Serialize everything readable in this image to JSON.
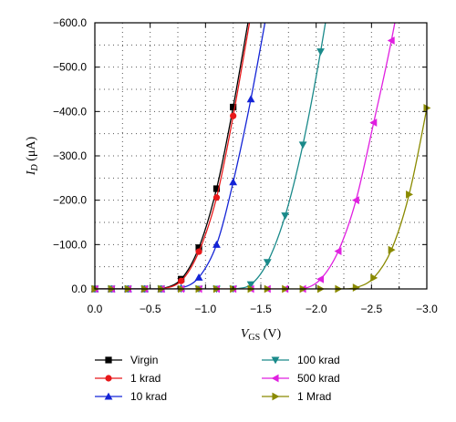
{
  "chart_data": {
    "type": "line",
    "xlabel": "V_GS (V)",
    "ylabel": "I_D (μA)",
    "xlim": [
      0.0,
      -3.0
    ],
    "ylim": [
      0.0,
      -600.0
    ],
    "x_ticks": [
      "0.0",
      "-0.5",
      "-1.0",
      "-1.5",
      "-2.0",
      "-2.5",
      "-3.0"
    ],
    "y_ticks": [
      "0.0",
      "-100.0",
      "-200.0",
      "-300.0",
      "-400.0",
      "-500.0",
      "-600.0"
    ],
    "grid": true,
    "legend_placement": "bottom",
    "series": [
      {
        "name": "Virgin",
        "color": "#000000",
        "marker": "square",
        "x": [
          0.0,
          -0.15,
          -0.3,
          -0.45,
          -0.6,
          -0.78,
          -0.94,
          -1.1,
          -1.25
        ],
        "y": [
          0,
          0,
          0,
          0,
          0,
          -22,
          -93,
          -226,
          -410
        ]
      },
      {
        "name": "1 krad",
        "color": "#e8181a",
        "marker": "circle",
        "x": [
          0.0,
          -0.15,
          -0.3,
          -0.45,
          -0.6,
          -0.78,
          -0.94,
          -1.1,
          -1.25
        ],
        "y": [
          0,
          0,
          0,
          0,
          0,
          -18,
          -84,
          -206,
          -390
        ]
      },
      {
        "name": "10 krad",
        "color": "#1424d6",
        "marker": "triangle-up",
        "x": [
          0.0,
          -0.15,
          -0.3,
          -0.45,
          -0.6,
          -0.78,
          -0.94,
          -1.1,
          -1.25,
          -1.41
        ],
        "y": [
          0,
          0,
          0,
          0,
          0,
          -2,
          -26,
          -100,
          -241,
          -428
        ]
      },
      {
        "name": "100 krad",
        "color": "#1a8a8a",
        "marker": "triangle-down",
        "x": [
          0.0,
          -0.15,
          -0.3,
          -0.45,
          -0.6,
          -0.78,
          -0.94,
          -1.1,
          -1.25,
          -1.41,
          -1.56,
          -1.72,
          -1.88,
          -2.04
        ],
        "y": [
          0,
          0,
          0,
          0,
          0,
          0,
          0,
          0,
          0,
          -10,
          -60,
          -165,
          -325,
          -535
        ]
      },
      {
        "name": "500 krad",
        "color": "#e020e0",
        "marker": "triangle-left",
        "x": [
          0.0,
          -0.15,
          -0.3,
          -0.45,
          -0.6,
          -0.78,
          -0.94,
          -1.1,
          -1.25,
          -1.41,
          -1.56,
          -1.72,
          -1.88,
          -2.04,
          -2.2,
          -2.36,
          -2.52,
          -2.68
        ],
        "y": [
          0,
          0,
          0,
          0,
          0,
          0,
          0,
          0,
          0,
          0,
          0,
          0,
          0,
          -22,
          -85,
          -200,
          -375,
          -560
        ]
      },
      {
        "name": "1 Mrad",
        "color": "#8a8a00",
        "marker": "triangle-right",
        "x": [
          0.0,
          -0.15,
          -0.3,
          -0.45,
          -0.6,
          -0.78,
          -0.94,
          -1.1,
          -1.25,
          -1.41,
          -1.56,
          -1.72,
          -1.88,
          -2.04,
          -2.2,
          -2.36,
          -2.52,
          -2.68,
          -2.84,
          -3.0
        ],
        "y": [
          0,
          0,
          0,
          0,
          0,
          0,
          0,
          0,
          0,
          0,
          0,
          0,
          0,
          0,
          0,
          -3,
          -25,
          -88,
          -213,
          -408
        ]
      }
    ]
  }
}
